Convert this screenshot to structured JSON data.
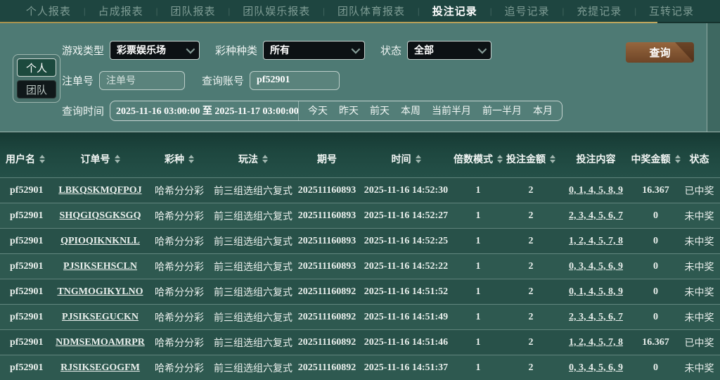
{
  "nav": {
    "separator": "|",
    "tabs": [
      {
        "label": "个人报表",
        "active": false
      },
      {
        "label": "占成报表",
        "active": false
      },
      {
        "label": "团队报表",
        "active": false
      },
      {
        "label": "团队娱乐报表",
        "active": false
      },
      {
        "label": "团队体育报表",
        "active": false
      },
      {
        "label": "投注记录",
        "active": true
      },
      {
        "label": "追号记录",
        "active": false
      },
      {
        "label": "充提记录",
        "active": false
      },
      {
        "label": "互转记录",
        "active": false
      }
    ]
  },
  "filters": {
    "scope": {
      "personal": "个人",
      "team": "团队"
    },
    "game_type": {
      "label": "游戏类型",
      "value": "彩票娱乐场"
    },
    "lottery_category": {
      "label": "彩种种类",
      "value": "所有"
    },
    "status": {
      "label": "状态",
      "value": "全部"
    },
    "bet_no": {
      "label": "注单号",
      "placeholder": "注单号"
    },
    "query_account": {
      "label": "查询账号",
      "value": "pf52901"
    },
    "query_time": {
      "label": "查询时间",
      "value": "2025-11-16 03:00:00 至 2025-11-17 03:00:00",
      "quick_links": [
        "今天",
        "昨天",
        "前天",
        "本周",
        "当前半月",
        "前一半月",
        "本月"
      ]
    },
    "query_button_label": "查询"
  },
  "table": {
    "columns": [
      {
        "label": "用户名",
        "sortable": true
      },
      {
        "label": "订单号",
        "sortable": true
      },
      {
        "label": "彩种",
        "sortable": true
      },
      {
        "label": "玩法",
        "sortable": true
      },
      {
        "label": "期号",
        "sortable": false
      },
      {
        "label": "时间",
        "sortable": true
      },
      {
        "label": "倍数模式",
        "sortable": true
      },
      {
        "label": "投注金额",
        "sortable": true
      },
      {
        "label": "投注内容",
        "sortable": false
      },
      {
        "label": "中奖金额",
        "sortable": true
      },
      {
        "label": "状态",
        "sortable": false
      }
    ],
    "rows": [
      {
        "username": "pf52901",
        "order_id": "LBKQSKMQFPOJ",
        "lottery": "哈希分分彩",
        "play": "前三组选组六复式",
        "issue": "202511160893",
        "time": "2025-11-16 14:52:30",
        "multiple_mode": "1",
        "bet_amount": "2",
        "bet_content": "0, 1, 4, 5, 8, 9",
        "win_amount": "16.367",
        "status": "已中奖"
      },
      {
        "username": "pf52901",
        "order_id": "SHQGIQSGKSGQ",
        "lottery": "哈希分分彩",
        "play": "前三组选组六复式",
        "issue": "202511160893",
        "time": "2025-11-16 14:52:27",
        "multiple_mode": "1",
        "bet_amount": "2",
        "bet_content": "2, 3, 4, 5, 6, 7",
        "win_amount": "0",
        "status": "未中奖"
      },
      {
        "username": "pf52901",
        "order_id": "QPIOQIKNKNLL",
        "lottery": "哈希分分彩",
        "play": "前三组选组六复式",
        "issue": "202511160893",
        "time": "2025-11-16 14:52:25",
        "multiple_mode": "1",
        "bet_amount": "2",
        "bet_content": "1, 2, 4, 5, 7, 8",
        "win_amount": "0",
        "status": "未中奖"
      },
      {
        "username": "pf52901",
        "order_id": "PJSIKSEHSCLN",
        "lottery": "哈希分分彩",
        "play": "前三组选组六复式",
        "issue": "202511160893",
        "time": "2025-11-16 14:52:22",
        "multiple_mode": "1",
        "bet_amount": "2",
        "bet_content": "0, 3, 4, 5, 6, 9",
        "win_amount": "0",
        "status": "未中奖"
      },
      {
        "username": "pf52901",
        "order_id": "TNGMOGIKYLNO",
        "lottery": "哈希分分彩",
        "play": "前三组选组六复式",
        "issue": "202511160892",
        "time": "2025-11-16 14:51:52",
        "multiple_mode": "1",
        "bet_amount": "2",
        "bet_content": "0, 1, 4, 5, 8, 9",
        "win_amount": "0",
        "status": "未中奖"
      },
      {
        "username": "pf52901",
        "order_id": "PJSIKSEGUCKN",
        "lottery": "哈希分分彩",
        "play": "前三组选组六复式",
        "issue": "202511160892",
        "time": "2025-11-16 14:51:49",
        "multiple_mode": "1",
        "bet_amount": "2",
        "bet_content": "2, 3, 4, 5, 6, 7",
        "win_amount": "0",
        "status": "未中奖"
      },
      {
        "username": "pf52901",
        "order_id": "NDMSEMOAMRPR",
        "lottery": "哈希分分彩",
        "play": "前三组选组六复式",
        "issue": "202511160892",
        "time": "2025-11-16 14:51:46",
        "multiple_mode": "1",
        "bet_amount": "2",
        "bet_content": "1, 2, 4, 5, 7, 8",
        "win_amount": "16.367",
        "status": "已中奖"
      },
      {
        "username": "pf52901",
        "order_id": "RJSIKSEGOGFM",
        "lottery": "哈希分分彩",
        "play": "前三组选组六复式",
        "issue": "202511160892",
        "time": "2025-11-16 14:51:37",
        "multiple_mode": "1",
        "bet_amount": "2",
        "bet_content": "0, 3, 4, 5, 6, 9",
        "win_amount": "0",
        "status": "未中奖"
      }
    ]
  },
  "colors": {
    "nav_bg": "#1e4540",
    "nav_active_text": "#ffffff",
    "nav_inactive_text": "#7e9c94",
    "accent_gold": "#b19a52",
    "panel_bg": "#4e7a74",
    "select_bg": "#0c1114",
    "query_button_brown": "#8a5a38",
    "table_row_dark": "#285149",
    "table_row_light": "#2e5950"
  }
}
